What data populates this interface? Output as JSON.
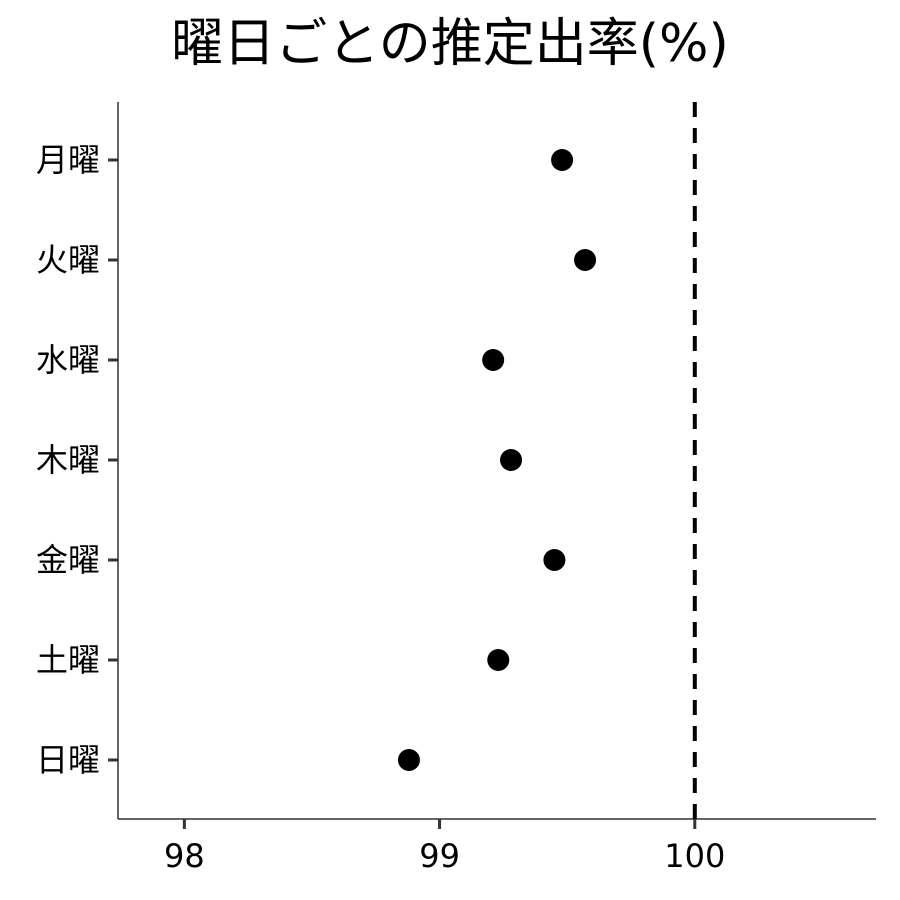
{
  "chart_data": {
    "type": "scatter",
    "title": "曜日ごとの推定出率(%)",
    "xlabel": "",
    "ylabel": "",
    "categories": [
      "月曜",
      "火曜",
      "水曜",
      "木曜",
      "金曜",
      "土曜",
      "日曜"
    ],
    "values": [
      99.48,
      99.57,
      99.21,
      99.28,
      99.45,
      99.23,
      98.88
    ],
    "xlim": [
      97.74,
      100.71
    ],
    "xticks": [
      98,
      99,
      100
    ],
    "xtick_labels": [
      "98",
      "99",
      "100"
    ],
    "reference_line": {
      "x": 100,
      "style": "dashed"
    },
    "grid": false,
    "legend": "none",
    "colors": {
      "point": "#000000",
      "axis": "#333333",
      "reference": "#000000"
    }
  }
}
